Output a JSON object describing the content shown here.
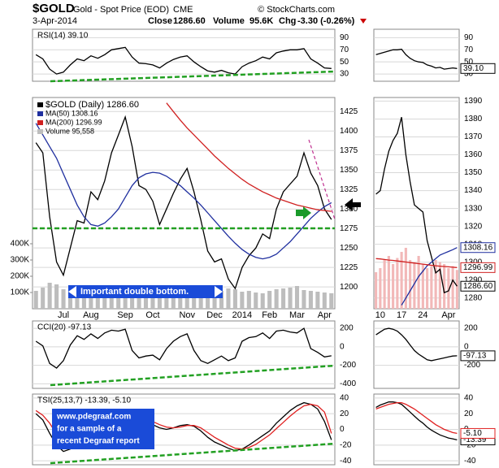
{
  "header": {
    "symbol": "$GOLD",
    "name": "Gold - Spot Price (EOD)",
    "exchange": "CME",
    "date": "3-Apr-2014",
    "close_label": "Close",
    "close": "1286.60",
    "volume_label": "Volume",
    "volume": "95.6K",
    "chg_label": "Chg",
    "chg": "-3.30 (-0.26%)",
    "source": "© StockCharts.com"
  },
  "chart_data": [
    {
      "type": "line",
      "title": "RSI(14) 39.10",
      "ylim": [
        18,
        104
      ],
      "yticks": [
        30,
        50,
        70,
        90
      ],
      "series": [
        {
          "color": "#000000",
          "values": [
            62,
            55,
            38,
            30,
            33,
            45,
            55,
            52,
            60,
            56,
            62,
            70,
            72,
            74,
            58,
            48,
            47,
            45,
            40,
            48,
            54,
            58,
            60,
            50,
            42,
            35,
            33,
            36,
            32,
            30,
            42,
            48,
            52,
            58,
            55,
            65,
            68,
            70,
            70,
            72,
            55,
            48,
            40,
            39.1
          ]
        }
      ]
    },
    {
      "type": "line",
      "legend": true,
      "ylim": [
        1172,
        1443
      ],
      "yticks": [
        1200,
        1225,
        1250,
        1275,
        1300,
        1325,
        1350,
        1375,
        1400,
        1425
      ],
      "y2lim": [
        0,
        1300000
      ],
      "y2ticks": [
        {
          "value": 100000,
          "label": "100K"
        },
        {
          "value": 200000,
          "label": "200K"
        },
        {
          "value": 300000,
          "label": "300K"
        },
        {
          "value": 400000,
          "label": "400K"
        }
      ],
      "categories": [
        null,
        null,
        null,
        null,
        "Jul",
        null,
        null,
        null,
        "Aug",
        null,
        null,
        null,
        null,
        "Sep",
        null,
        null,
        null,
        "Oct",
        null,
        null,
        null,
        null,
        "Nov",
        null,
        null,
        null,
        "Dec",
        null,
        null,
        null,
        "2014",
        null,
        null,
        null,
        "Feb",
        null,
        null,
        null,
        "Mar",
        null,
        null,
        null,
        "Apr",
        null
      ],
      "annotations": [
        "Important double bottom."
      ],
      "series": [
        {
          "name": "Volume 95,558",
          "type": "bar",
          "axis": "y2",
          "color": "#bdbdbd",
          "values": [
            110000,
            130000,
            160000,
            150000,
            120000,
            110000,
            100000,
            105000,
            115000,
            100000,
            95000,
            120000,
            130000,
            140000,
            110000,
            105000,
            100000,
            95000,
            100000,
            90000,
            95000,
            100000,
            90000,
            95000,
            110000,
            120000,
            115000,
            110000,
            125000,
            120000,
            105000,
            110000,
            100000,
            95000,
            110000,
            120000,
            125000,
            130000,
            140000,
            115000,
            110000,
            105000,
            100000,
            95558
          ]
        },
        {
          "name": "$GOLD (Daily) 1286.60",
          "color": "#000000",
          "values": [
            1385,
            1372,
            1290,
            1232,
            1215,
            1250,
            1285,
            1282,
            1322,
            1312,
            1336,
            1372,
            1395,
            1418,
            1380,
            1330,
            1325,
            1310,
            1280,
            1300,
            1320,
            1338,
            1352,
            1322,
            1286,
            1246,
            1232,
            1236,
            1210,
            1198,
            1225,
            1240,
            1250,
            1268,
            1262,
            1300,
            1322,
            1332,
            1342,
            1372,
            1346,
            1330,
            1300,
            1286.6
          ]
        },
        {
          "name": "MA(50) 1308.16",
          "color": "#1f2f9f",
          "values": [
            1410,
            1395,
            1380,
            1365,
            1345,
            1325,
            1305,
            1290,
            1280,
            1278,
            1282,
            1290,
            1300,
            1315,
            1330,
            1340,
            1345,
            1347,
            1346,
            1342,
            1336,
            1330,
            1322,
            1314,
            1305,
            1295,
            1285,
            1275,
            1265,
            1256,
            1248,
            1242,
            1238,
            1236,
            1238,
            1242,
            1250,
            1258,
            1268,
            1278,
            1288,
            1296,
            1303,
            1308.16
          ]
        },
        {
          "name": "MA(200) 1296.99",
          "color": "#d02020",
          "values": [
            null,
            null,
            null,
            null,
            null,
            null,
            null,
            null,
            null,
            null,
            null,
            null,
            null,
            null,
            null,
            null,
            null,
            null,
            null,
            1436,
            1425,
            1414,
            1404,
            1395,
            1386,
            1377,
            1368,
            1360,
            1352,
            1345,
            1338,
            1332,
            1327,
            1322,
            1318,
            1314,
            1311,
            1308,
            1305,
            1303,
            1301,
            1299,
            1298,
            1296.99
          ]
        }
      ]
    },
    {
      "type": "line",
      "title": "CCI(20) -97.13",
      "ylim": [
        -450,
        280
      ],
      "yticks": [
        -400,
        -200,
        0,
        200
      ],
      "series": [
        {
          "color": "#000000",
          "values": [
            60,
            10,
            -180,
            -230,
            -150,
            20,
            120,
            80,
            140,
            90,
            150,
            180,
            170,
            190,
            -40,
            -120,
            -100,
            -90,
            -140,
            -20,
            60,
            110,
            140,
            -40,
            -150,
            -180,
            -140,
            -100,
            -150,
            -120,
            60,
            100,
            110,
            150,
            90,
            170,
            180,
            160,
            150,
            200,
            -20,
            -60,
            -110,
            -97.13
          ]
        }
      ]
    },
    {
      "type": "line",
      "title": "TSI(25,13,7) -13.39, -5.10",
      "ylim": [
        -45,
        45
      ],
      "yticks": [
        -40,
        -20,
        0,
        20,
        40
      ],
      "annotations": [
        "www.pdegraaf.com",
        "for a sample of a",
        "recent Degraaf report"
      ],
      "series": [
        {
          "color": "#000000",
          "values": [
            20,
            12,
            -5,
            -20,
            -28,
            -25,
            -18,
            -12,
            -5,
            0,
            5,
            12,
            18,
            22,
            20,
            15,
            10,
            6,
            2,
            0,
            2,
            5,
            6,
            4,
            -2,
            -10,
            -16,
            -20,
            -24,
            -27,
            -25,
            -20,
            -14,
            -8,
            -2,
            8,
            16,
            24,
            30,
            34,
            32,
            26,
            10,
            -13.39
          ]
        },
        {
          "color": "#e02020",
          "values": [
            24,
            18,
            8,
            -6,
            -16,
            -22,
            -22,
            -18,
            -12,
            -6,
            0,
            6,
            12,
            18,
            20,
            18,
            14,
            10,
            6,
            3,
            2,
            3,
            5,
            5,
            2,
            -4,
            -10,
            -15,
            -20,
            -24,
            -25,
            -23,
            -19,
            -13,
            -7,
            1,
            9,
            17,
            24,
            30,
            32,
            30,
            22,
            -5.1
          ]
        }
      ]
    },
    {
      "type": "line",
      "ylim": [
        18,
        104
      ],
      "yticks": [
        30,
        50,
        70,
        90
      ],
      "series": [
        {
          "color": "#000000",
          "end_label": "39.10",
          "values": [
            62,
            64,
            66,
            68,
            70,
            70,
            71,
            62,
            56,
            52,
            50,
            49,
            45,
            43,
            40,
            41,
            38,
            39,
            40,
            39.1
          ]
        }
      ]
    },
    {
      "type": "line",
      "ylim": [
        1274,
        1392
      ],
      "yticks": [
        1280,
        1290,
        1300,
        1310,
        1320,
        1330,
        1340,
        1350,
        1360,
        1370,
        1380,
        1390
      ],
      "y2lim": [
        0,
        520000
      ],
      "categories": [
        null,
        "10",
        null,
        null,
        null,
        null,
        "17",
        null,
        null,
        null,
        null,
        "24",
        null,
        null,
        null,
        null,
        null,
        "Apr",
        null,
        null
      ],
      "series": [
        {
          "type": "bar",
          "axis": "y2",
          "color": "#f2b8b8",
          "values": [
            90000,
            100000,
            120000,
            130000,
            110000,
            125000,
            140000,
            150000,
            120000,
            115000,
            130000,
            110000,
            100000,
            105000,
            120000,
            115000,
            110000,
            100000,
            105000,
            95558
          ]
        },
        {
          "color": "#000000",
          "end_label": "1286.60",
          "values": [
            1338,
            1340,
            1352,
            1362,
            1368,
            1372,
            1381,
            1360,
            1345,
            1332,
            1330,
            1328,
            1312,
            1303,
            1294,
            1296,
            1283,
            1284,
            1290,
            1286.6
          ]
        },
        {
          "color": "#1f2f9f",
          "end_label": "1308.16",
          "values": [
            null,
            null,
            null,
            null,
            null,
            null,
            1276,
            1280,
            1284,
            1288,
            1292,
            1295,
            1298,
            1300,
            1302,
            1304,
            1305,
            1306,
            1307,
            1308.16
          ]
        },
        {
          "color": "#d02020",
          "end_label": "1296.99",
          "values": [
            1302,
            1301.8,
            1301.5,
            1301.2,
            1301,
            1300.7,
            1300.4,
            1300.1,
            1299.8,
            1299.5,
            1299.2,
            1298.9,
            1298.6,
            1298.3,
            1298,
            1297.8,
            1297.6,
            1297.4,
            1297.2,
            1296.99
          ]
        }
      ]
    },
    {
      "type": "line",
      "ylim": [
        -450,
        280
      ],
      "yticks": [
        -200,
        0,
        200
      ],
      "series": [
        {
          "color": "#000000",
          "end_label": "-97.13",
          "values": [
            130,
            160,
            190,
            200,
            190,
            170,
            130,
            80,
            20,
            -40,
            -80,
            -110,
            -140,
            -150,
            -140,
            -130,
            -120,
            -110,
            -100,
            -97.13
          ]
        }
      ]
    },
    {
      "type": "line",
      "ylim": [
        -45,
        45
      ],
      "yticks": [
        -40,
        -20,
        0,
        20,
        40
      ],
      "series": [
        {
          "color": "#000000",
          "end_label": "-13.39",
          "values": [
            28,
            31,
            33,
            35,
            35,
            34,
            32,
            27,
            22,
            17,
            12,
            8,
            3,
            -1,
            -4,
            -7,
            -9,
            -11,
            -12,
            -13.39
          ]
        },
        {
          "color": "#e02020",
          "end_label": "-5.10",
          "values": [
            26,
            28,
            30,
            32,
            33,
            34,
            34,
            32,
            29,
            26,
            22,
            18,
            14,
            10,
            6,
            3,
            0,
            -2,
            -4,
            -5.1
          ]
        }
      ]
    }
  ]
}
